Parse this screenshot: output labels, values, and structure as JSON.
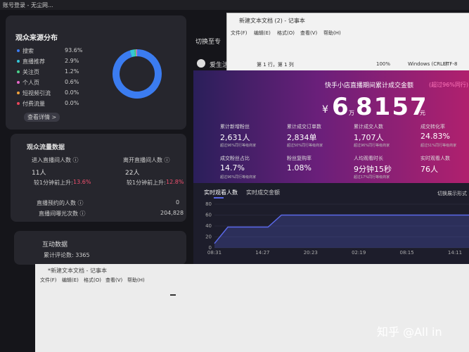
{
  "window_title": "账号登录 - 无尘网...",
  "source_panel": {
    "title": "观众来源分布",
    "button": "查看详情 >",
    "items": [
      {
        "name": "搜索",
        "value": 93.6,
        "label": "93.6%",
        "color": "#3b7cf0"
      },
      {
        "name": "直播推荐",
        "value": 2.9,
        "label": "2.9%",
        "color": "#35c6d8"
      },
      {
        "name": "关注页",
        "value": 1.2,
        "label": "1.2%",
        "color": "#4bd18a"
      },
      {
        "name": "个人页",
        "value": 0.6,
        "label": "0.6%",
        "color": "#e667c8"
      },
      {
        "name": "短视频引流",
        "value": 0.0,
        "label": "0.0%",
        "color": "#f0a23c"
      },
      {
        "name": "付费流量",
        "value": 0.0,
        "label": "0.0%",
        "color": "#e9465a"
      }
    ]
  },
  "traffic_panel": {
    "title": "观众流量数据",
    "enter_label": "进入直播间人数 ⓘ",
    "enter_value": "11人",
    "enter_change_label": "较1分钟前上升:",
    "enter_change": "13.6%",
    "leave_label": "离开直播间人数 ⓘ",
    "leave_value": "22人",
    "leave_change_label": "较1分钟前上升:",
    "leave_change": "12.8%",
    "reserve_label": "直播预约的人数 ⓘ",
    "reserve_value": "0",
    "exposure_label": "直播间曝光次数 ⓘ",
    "exposure_value": "204,828"
  },
  "interaction_panel": {
    "title": "互动数据",
    "comments": "累计评论数: 3365"
  },
  "middle": {
    "switch": "切换至专",
    "life": "爱生活"
  },
  "notepad_top": {
    "title": "新建文本文档 (2) - 记事本",
    "menu": [
      "文件(F)",
      "编辑(E)",
      "格式(O)",
      "查看(V)",
      "帮助(H)"
    ],
    "status": [
      "第 1 行，第 1 列",
      "100%",
      "Windows (CRLF)",
      "UTF-8"
    ]
  },
  "dashboard": {
    "title": "快手小店直播期间累计成交金额",
    "title_note": "(超过96%同行)",
    "currency": "¥",
    "amount_wan": "6",
    "wan": "万",
    "amount_rest": "8157",
    "yuan": "元",
    "metrics": [
      {
        "label": "累计新增粉丝",
        "value": "2,631人",
        "note": "超过96%同行等级商家"
      },
      {
        "label": "累计成交订单数",
        "value": "2,834单",
        "note": "超过50%同行等级商家"
      },
      {
        "label": "累计成交人数",
        "value": "1,707人",
        "note": "超过96%同行等级商家"
      },
      {
        "label": "成交转化率",
        "value": "24.83%",
        "note": "超过51%同行等级商家"
      },
      {
        "label": "成交粉丝占比",
        "value": "14.7%",
        "note": "超过96%同行等级商家"
      },
      {
        "label": "粉丝复购率",
        "value": "1.08%",
        "note": ""
      },
      {
        "label": "人均观看时长",
        "value": "9分钟15秒",
        "note": "超过17%同行等级商家"
      },
      {
        "label": "实时观看人数",
        "value": "76人",
        "note": ""
      }
    ],
    "tabs": [
      "实时观看人数",
      "实时成交金额"
    ],
    "switch": "切换展示形式"
  },
  "realtime_chart": {
    "ylim": [
      0,
      80
    ],
    "yticks": [
      0,
      20,
      40,
      60,
      80
    ],
    "xticks": [
      "08:31",
      "14:27",
      "20:23",
      "02:19",
      "08:15",
      "14:11"
    ],
    "values": [
      8,
      38,
      38,
      38,
      38,
      60,
      60,
      60,
      60,
      60,
      60,
      60,
      60,
      60,
      60,
      60,
      60,
      60,
      60,
      60
    ],
    "color": "#5a68e8"
  },
  "notepad_bottom": {
    "title": "*新建文本文档 - 记事本",
    "menu": [
      "文件(F)",
      "编辑(E)",
      "格式(O)",
      "查看(V)",
      "帮助(H)"
    ]
  },
  "watermark": "知乎 @All in"
}
